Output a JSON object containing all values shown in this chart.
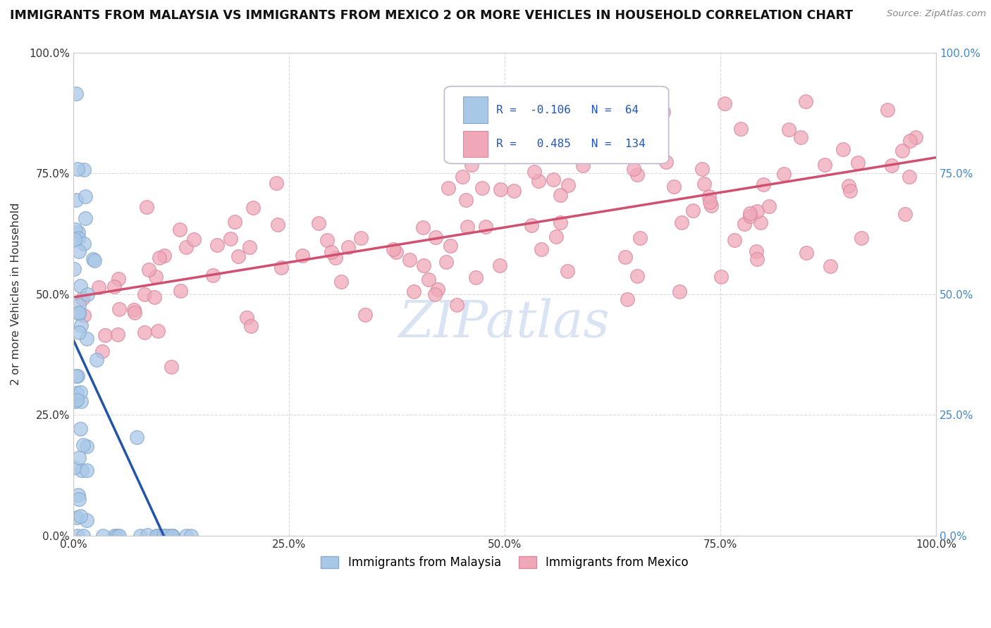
{
  "title": "IMMIGRANTS FROM MALAYSIA VS IMMIGRANTS FROM MEXICO 2 OR MORE VEHICLES IN HOUSEHOLD CORRELATION CHART",
  "source": "Source: ZipAtlas.com",
  "ylabel": "2 or more Vehicles in Household",
  "malaysia_R": -0.106,
  "malaysia_N": 64,
  "mexico_R": 0.485,
  "mexico_N": 134,
  "malaysia_color": "#a8c8e8",
  "mexico_color": "#f0a8b8",
  "malaysia_edge_color": "#88aacc",
  "mexico_edge_color": "#d888a0",
  "malaysia_line_color": "#2255aa",
  "mexico_line_color": "#d05070",
  "dash_color": "#aabbdd",
  "watermark_color": "#d0ddf0",
  "tick_color_right": "#4488cc",
  "tick_color_left": "#333333",
  "background": "#ffffff"
}
